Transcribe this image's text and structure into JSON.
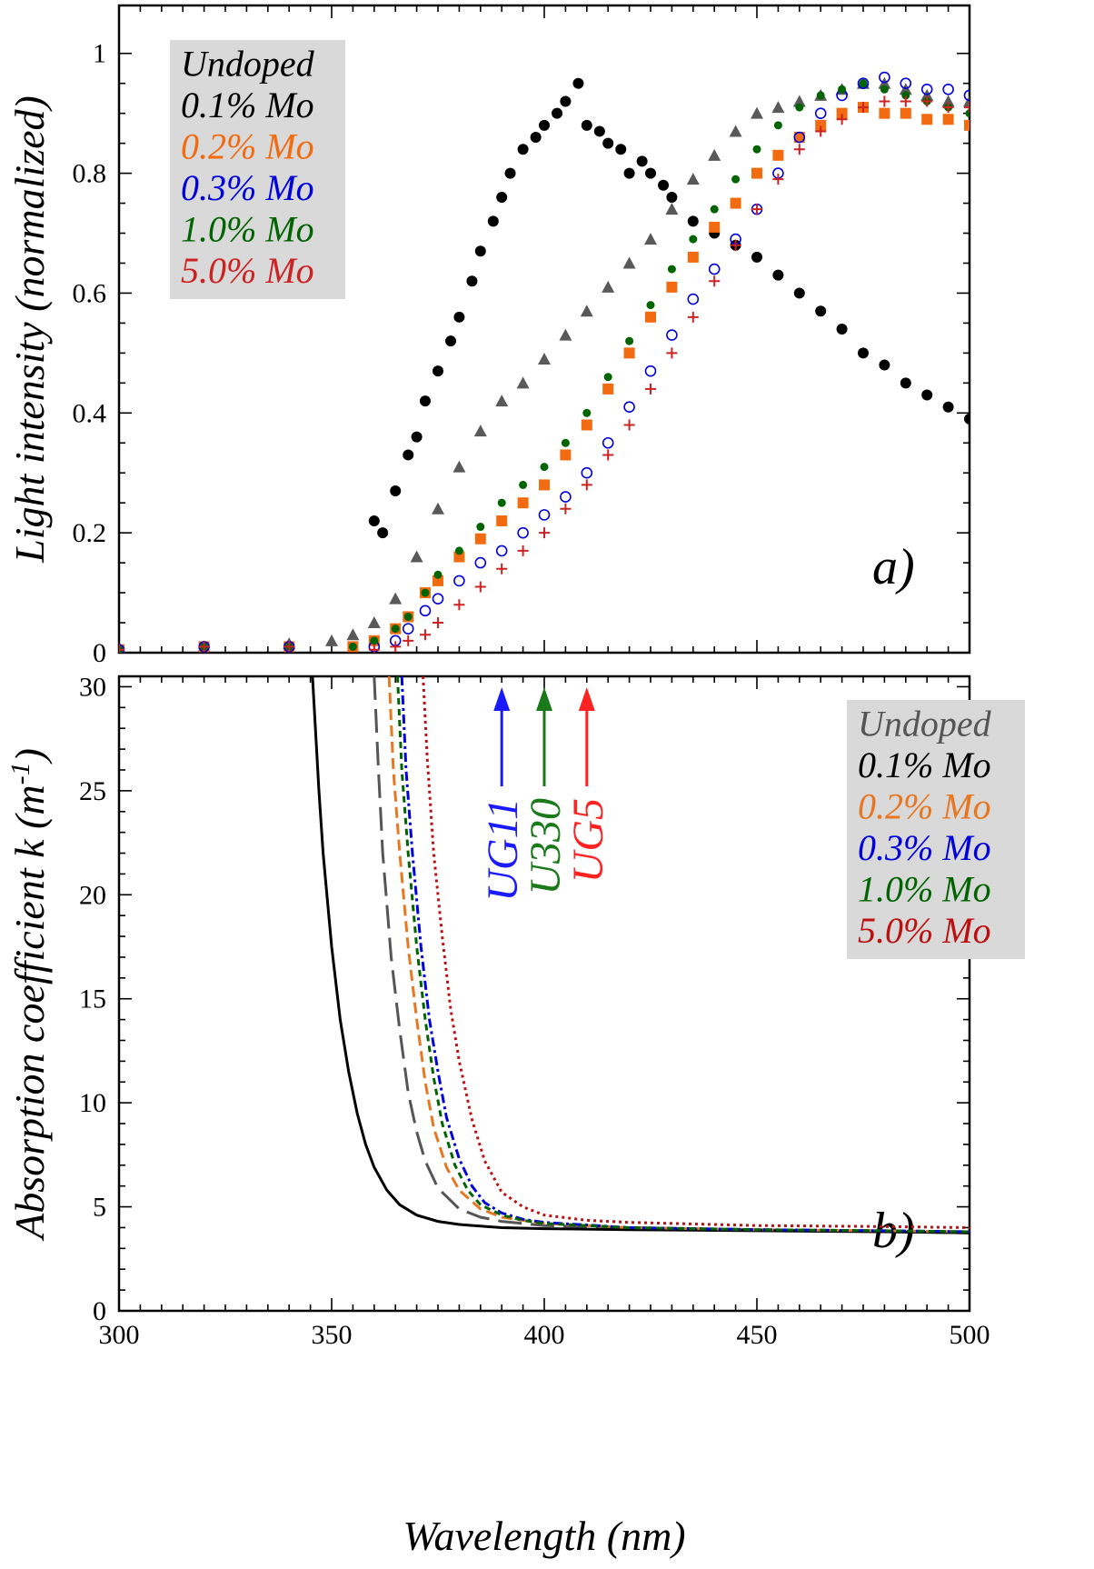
{
  "chart_data": [
    {
      "type": "scatter",
      "panel_label": "a)",
      "ylabel": "Light intensity (normalized)",
      "xlim": [
        300,
        500
      ],
      "ylim": [
        0,
        1.08
      ],
      "yticks": [
        "0",
        "0.2",
        "0.4",
        "0.6",
        "0.8",
        "1"
      ],
      "ytick_values": [
        0,
        0.2,
        0.4,
        0.6,
        0.8,
        1
      ],
      "grid": false,
      "legend_position": "top-left",
      "legend_background": "#d9d9d9",
      "series": [
        {
          "name": "Undoped",
          "color": "#595959",
          "marker": "triangle",
          "x": [
            300,
            320,
            340,
            350,
            355,
            360,
            365,
            370,
            375,
            380,
            385,
            390,
            395,
            400,
            405,
            410,
            415,
            420,
            425,
            430,
            435,
            440,
            445,
            450,
            455,
            460,
            465,
            470,
            475,
            480,
            485,
            490,
            495,
            500
          ],
          "y": [
            0.005,
            0.01,
            0.015,
            0.02,
            0.03,
            0.05,
            0.09,
            0.16,
            0.24,
            0.31,
            0.37,
            0.42,
            0.45,
            0.49,
            0.53,
            0.57,
            0.61,
            0.65,
            0.69,
            0.74,
            0.79,
            0.83,
            0.87,
            0.9,
            0.91,
            0.92,
            0.93,
            0.94,
            0.95,
            0.95,
            0.94,
            0.93,
            0.92,
            0.92
          ]
        },
        {
          "name": "0.1% Mo",
          "color": "#000000",
          "marker": "circle",
          "x": [
            360,
            362,
            365,
            368,
            370,
            372,
            375,
            378,
            380,
            383,
            385,
            388,
            390,
            392,
            395,
            398,
            400,
            403,
            405,
            408,
            410,
            413,
            415,
            418,
            420,
            423,
            425,
            428,
            430,
            435,
            440,
            445,
            450,
            455,
            460,
            465,
            470,
            475,
            480,
            485,
            490,
            495,
            500
          ],
          "y": [
            0.22,
            0.2,
            0.27,
            0.33,
            0.36,
            0.42,
            0.47,
            0.52,
            0.56,
            0.62,
            0.67,
            0.72,
            0.76,
            0.8,
            0.84,
            0.86,
            0.88,
            0.9,
            0.92,
            0.95,
            0.88,
            0.87,
            0.85,
            0.84,
            0.8,
            0.82,
            0.8,
            0.78,
            0.76,
            0.72,
            0.7,
            0.68,
            0.66,
            0.63,
            0.6,
            0.57,
            0.54,
            0.5,
            0.48,
            0.45,
            0.43,
            0.41,
            0.39
          ]
        },
        {
          "name": "0.2% Mo",
          "color": "#f26b10",
          "marker": "square",
          "x": [
            300,
            320,
            340,
            355,
            360,
            365,
            368,
            372,
            375,
            380,
            385,
            390,
            395,
            400,
            405,
            410,
            415,
            420,
            425,
            430,
            435,
            440,
            445,
            450,
            455,
            460,
            465,
            470,
            475,
            480,
            485,
            490,
            495,
            500
          ],
          "y": [
            0.005,
            0.01,
            0.01,
            0.01,
            0.02,
            0.04,
            0.06,
            0.1,
            0.12,
            0.16,
            0.19,
            0.22,
            0.25,
            0.28,
            0.33,
            0.38,
            0.44,
            0.5,
            0.56,
            0.61,
            0.66,
            0.71,
            0.75,
            0.8,
            0.83,
            0.86,
            0.88,
            0.9,
            0.91,
            0.9,
            0.9,
            0.89,
            0.89,
            0.88
          ]
        },
        {
          "name": "0.3% Mo",
          "color": "#0000dd",
          "marker": "open-circle",
          "x": [
            300,
            320,
            340,
            360,
            365,
            368,
            372,
            375,
            380,
            385,
            390,
            395,
            400,
            405,
            410,
            415,
            420,
            425,
            430,
            435,
            440,
            445,
            450,
            455,
            460,
            465,
            470,
            475,
            480,
            485,
            490,
            495,
            500
          ],
          "y": [
            0.005,
            0.01,
            0.01,
            0.01,
            0.02,
            0.04,
            0.07,
            0.09,
            0.12,
            0.15,
            0.17,
            0.2,
            0.23,
            0.26,
            0.3,
            0.35,
            0.41,
            0.47,
            0.53,
            0.59,
            0.64,
            0.69,
            0.74,
            0.8,
            0.86,
            0.9,
            0.93,
            0.95,
            0.96,
            0.95,
            0.94,
            0.94,
            0.93
          ]
        },
        {
          "name": "1.0% Mo",
          "color": "#006400",
          "marker": "circle",
          "x": [
            300,
            320,
            340,
            355,
            360,
            365,
            368,
            372,
            375,
            380,
            385,
            390,
            395,
            400,
            405,
            410,
            415,
            420,
            425,
            430,
            435,
            440,
            445,
            450,
            455,
            460,
            465,
            470,
            475,
            480,
            485,
            490,
            495,
            500
          ],
          "y": [
            0.005,
            0.01,
            0.01,
            0.01,
            0.02,
            0.04,
            0.06,
            0.1,
            0.13,
            0.17,
            0.21,
            0.25,
            0.28,
            0.31,
            0.35,
            0.4,
            0.46,
            0.52,
            0.58,
            0.64,
            0.69,
            0.74,
            0.79,
            0.84,
            0.88,
            0.91,
            0.93,
            0.94,
            0.95,
            0.94,
            0.93,
            0.92,
            0.91,
            0.9
          ]
        },
        {
          "name": "5.0% Mo",
          "color": "#cc2222",
          "marker": "plus",
          "x": [
            300,
            320,
            340,
            360,
            365,
            368,
            372,
            375,
            380,
            385,
            390,
            395,
            400,
            405,
            410,
            415,
            420,
            425,
            430,
            435,
            440,
            445,
            450,
            455,
            460,
            465,
            470,
            475,
            480,
            485,
            490,
            495,
            500
          ],
          "y": [
            0.005,
            0.01,
            0.01,
            0.005,
            0.01,
            0.02,
            0.03,
            0.05,
            0.08,
            0.11,
            0.14,
            0.17,
            0.2,
            0.24,
            0.28,
            0.33,
            0.38,
            0.44,
            0.5,
            0.56,
            0.62,
            0.68,
            0.74,
            0.79,
            0.84,
            0.87,
            0.89,
            0.91,
            0.92,
            0.92,
            0.92,
            0.91,
            0.91
          ]
        }
      ]
    },
    {
      "type": "line",
      "panel_label": "b)",
      "xlabel": "Wavelength (nm)",
      "ylabel": "Absorption coefficient k (m",
      "ylabel_superscript": "-1",
      "ylabel_close": ")",
      "xlim": [
        300,
        500
      ],
      "ylim": [
        0,
        30.5
      ],
      "xticks": [
        "300",
        "350",
        "400",
        "450",
        "500"
      ],
      "xtick_values": [
        300,
        350,
        400,
        450,
        500
      ],
      "yticks": [
        "0",
        "5",
        "10",
        "15",
        "20",
        "25",
        "30"
      ],
      "ytick_values": [
        0,
        5,
        10,
        15,
        20,
        25,
        30
      ],
      "grid": false,
      "legend_position": "top-right",
      "legend_background": "#d9d9d9",
      "series": [
        {
          "name": "Undoped",
          "color": "#555555",
          "dash": "26 10",
          "x": [
            360,
            361,
            362,
            364,
            366,
            368,
            370,
            372,
            375,
            380,
            385,
            390,
            400,
            420,
            450,
            480,
            500
          ],
          "y": [
            30.5,
            26,
            22,
            17,
            13.5,
            10.5,
            8.6,
            7.2,
            5.9,
            4.9,
            4.5,
            4.3,
            4.1,
            4.0,
            3.9,
            3.8,
            3.75
          ]
        },
        {
          "name": "0.1% Mo",
          "color": "#000000",
          "dash": "",
          "x": [
            345.5,
            347,
            348,
            350,
            352,
            354,
            356,
            358,
            360,
            363,
            366,
            370,
            375,
            380,
            390,
            400,
            420,
            450,
            480,
            500
          ],
          "y": [
            30.5,
            25,
            22,
            17.5,
            14,
            11.5,
            9.5,
            8,
            6.9,
            5.8,
            5.1,
            4.6,
            4.3,
            4.15,
            4.0,
            3.95,
            3.9,
            3.85,
            3.8,
            3.75
          ]
        },
        {
          "name": "0.2% Mo",
          "color": "#e87722",
          "dash": "12 6",
          "x": [
            363.5,
            364.5,
            366,
            368,
            370,
            372,
            374,
            377,
            380,
            385,
            390,
            400,
            420,
            450,
            480,
            500
          ],
          "y": [
            30.5,
            26,
            22,
            17.5,
            14,
            11,
            8.8,
            6.9,
            5.8,
            4.9,
            4.5,
            4.2,
            4.0,
            3.9,
            3.85,
            3.8
          ]
        },
        {
          "name": "0.3% Mo",
          "color": "#0000dd",
          "dash": "10 4 3 4",
          "x": [
            366.5,
            367.5,
            369,
            371,
            373,
            375,
            377,
            380,
            383,
            386,
            390,
            395,
            400,
            420,
            450,
            480,
            500
          ],
          "y": [
            30.5,
            26,
            22,
            17.5,
            14,
            11.5,
            9.3,
            7.3,
            6,
            5.2,
            4.7,
            4.4,
            4.25,
            4.0,
            3.9,
            3.85,
            3.8
          ]
        },
        {
          "name": "1.0% Mo",
          "color": "#006400",
          "dash": "7 5",
          "x": [
            365.5,
            366.5,
            368,
            370,
            372,
            374,
            376,
            379,
            382,
            385,
            390,
            395,
            400,
            420,
            450,
            480,
            500
          ],
          "y": [
            30.5,
            26,
            22,
            17.5,
            14,
            11.2,
            9,
            7,
            5.8,
            5.1,
            4.6,
            4.35,
            4.2,
            4.0,
            3.9,
            3.85,
            3.8
          ]
        },
        {
          "name": "5.0% Mo",
          "color": "#bb1111",
          "dash": "3 4",
          "x": [
            371.5,
            372.5,
            374,
            376,
            378,
            380,
            383,
            386,
            390,
            395,
            400,
            410,
            420,
            450,
            480,
            500
          ],
          "y": [
            30.5,
            26.5,
            22,
            18,
            14.5,
            12,
            9.2,
            7.2,
            5.7,
            5,
            4.6,
            4.35,
            4.25,
            4.1,
            4.05,
            4.0
          ]
        }
      ],
      "filters": [
        {
          "label": "UG11",
          "color": "#1a1aff",
          "x": 390
        },
        {
          "label": "U330",
          "color": "#1a7a1a",
          "x": 400
        },
        {
          "label": "UG5",
          "color": "#ff2222",
          "x": 410
        }
      ]
    }
  ]
}
